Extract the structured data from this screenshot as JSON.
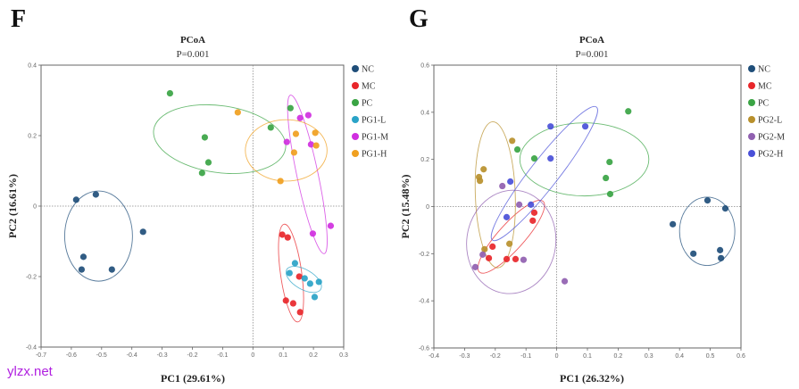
{
  "watermark": "ylzx.net",
  "chart_data": [
    {
      "panel": "F",
      "type": "scatter",
      "title": "PCoA",
      "subtitle": "P=0.001",
      "xlabel": "PC1 (29.61%)",
      "ylabel": "PC2 (16.61%)",
      "xlim": [
        -0.7,
        0.3
      ],
      "ylim": [
        -0.4,
        0.4
      ],
      "xticks": [
        -0.7,
        -0.6,
        -0.5,
        -0.4,
        -0.3,
        -0.2,
        -0.1,
        0,
        0.1,
        0.2,
        0.3
      ],
      "xtick_labels": [
        "-0.7",
        "-0.6",
        "-0.5",
        "-0.4",
        "-0.3",
        "-0.2",
        "-0.1",
        "0",
        "0.1",
        "0.2",
        "0.3"
      ],
      "yticks": [
        -0.4,
        -0.2,
        0,
        0.2,
        0.4
      ],
      "ytick_labels": [
        "-0.4",
        "-0.2",
        "0",
        "0.2",
        "0.4"
      ],
      "grid": false,
      "reference_lines": {
        "x": 0,
        "y": 0
      },
      "legend_position": "right",
      "series": [
        {
          "name": "NC",
          "color": "#1f4e79",
          "points": [
            [
              -0.584,
              0.018
            ],
            [
              -0.519,
              0.033
            ],
            [
              -0.56,
              -0.144
            ],
            [
              -0.566,
              -0.18
            ],
            [
              -0.466,
              -0.18
            ],
            [
              -0.363,
              -0.073
            ]
          ],
          "ellipse": {
            "cx": -0.51,
            "cy": -0.085,
            "rx": 0.112,
            "ry": 0.128,
            "angle": 0
          }
        },
        {
          "name": "MC",
          "color": "#e8262a",
          "points": [
            [
              0.097,
              -0.081
            ],
            [
              0.115,
              -0.089
            ],
            [
              0.153,
              -0.2
            ],
            [
              0.133,
              -0.276
            ],
            [
              0.109,
              -0.268
            ],
            [
              0.156,
              -0.301
            ]
          ],
          "ellipse": {
            "cx": 0.126,
            "cy": -0.19,
            "rx": 0.035,
            "ry": 0.14,
            "angle": -8
          }
        },
        {
          "name": "PC",
          "color": "#3aa444",
          "points": [
            [
              -0.274,
              0.32
            ],
            [
              -0.159,
              0.195
            ],
            [
              -0.147,
              0.124
            ],
            [
              -0.168,
              0.094
            ],
            [
              0.059,
              0.223
            ],
            [
              0.124,
              0.278
            ]
          ],
          "ellipse": {
            "cx": -0.11,
            "cy": 0.19,
            "rx": 0.22,
            "ry": 0.095,
            "angle": 8
          }
        },
        {
          "name": "PG1-L",
          "color": "#2aa3c7",
          "points": [
            [
              0.139,
              -0.162
            ],
            [
              0.121,
              -0.19
            ],
            [
              0.171,
              -0.205
            ],
            [
              0.189,
              -0.22
            ],
            [
              0.218,
              -0.215
            ],
            [
              0.204,
              -0.258
            ]
          ],
          "ellipse": {
            "cx": 0.168,
            "cy": -0.208,
            "rx": 0.065,
            "ry": 0.028,
            "angle": 30
          }
        },
        {
          "name": "PG1-M",
          "color": "#d02fe0",
          "points": [
            [
              0.156,
              0.25
            ],
            [
              0.183,
              0.258
            ],
            [
              0.112,
              0.182
            ],
            [
              0.192,
              0.175
            ],
            [
              0.198,
              -0.078
            ],
            [
              0.257,
              -0.056
            ]
          ],
          "ellipse": {
            "cx": 0.18,
            "cy": 0.09,
            "rx": 0.035,
            "ry": 0.23,
            "angle": -12
          }
        },
        {
          "name": "PG1-H",
          "color": "#f0a020",
          "points": [
            [
              -0.05,
              0.266
            ],
            [
              0.142,
              0.205
            ],
            [
              0.206,
              0.208
            ],
            [
              0.136,
              0.152
            ],
            [
              0.209,
              0.172
            ],
            [
              0.091,
              0.071
            ]
          ],
          "ellipse": {
            "cx": 0.11,
            "cy": 0.158,
            "rx": 0.135,
            "ry": 0.087,
            "angle": 0
          }
        }
      ]
    },
    {
      "panel": "G",
      "type": "scatter",
      "title": "PCoA",
      "subtitle": "P=0.001",
      "xlabel": "PC1 (26.32%)",
      "ylabel": "PC2 (15.48%)",
      "xlim": [
        -0.4,
        0.6
      ],
      "ylim": [
        -0.6,
        0.6
      ],
      "xticks": [
        -0.4,
        -0.3,
        -0.2,
        -0.1,
        0,
        0.1,
        0.2,
        0.3,
        0.4,
        0.5,
        0.6
      ],
      "xtick_labels": [
        "-0.4",
        "-0.3",
        "-0.2",
        "-0.1",
        "0",
        "0.1",
        "0.2",
        "0.3",
        "0.4",
        "0.5",
        "0.6"
      ],
      "yticks": [
        -0.6,
        -0.4,
        -0.2,
        0,
        0.2,
        0.4,
        0.6
      ],
      "ytick_labels": [
        "-0.6",
        "-0.4",
        "-0.2",
        "0",
        "0.2",
        "0.4",
        "0.6"
      ],
      "grid": false,
      "reference_lines": {
        "x": 0,
        "y": 0
      },
      "legend_position": "right",
      "series": [
        {
          "name": "NC",
          "color": "#1f4e79",
          "points": [
            [
              0.378,
              -0.075
            ],
            [
              0.491,
              0.026
            ],
            [
              0.549,
              -0.008
            ],
            [
              0.445,
              -0.2
            ],
            [
              0.532,
              -0.185
            ],
            [
              0.535,
              -0.219
            ]
          ],
          "ellipse": {
            "cx": 0.49,
            "cy": -0.105,
            "rx": 0.09,
            "ry": 0.145,
            "angle": 0
          }
        },
        {
          "name": "MC",
          "color": "#e8262a",
          "points": [
            [
              -0.073,
              -0.026
            ],
            [
              -0.078,
              -0.06
            ],
            [
              -0.209,
              -0.17
            ],
            [
              -0.221,
              -0.219
            ],
            [
              -0.163,
              -0.223
            ],
            [
              -0.134,
              -0.223
            ]
          ],
          "ellipse": {
            "cx": -0.148,
            "cy": -0.128,
            "rx": 0.155,
            "ry": 0.055,
            "angle": -48
          }
        },
        {
          "name": "PC",
          "color": "#3aa444",
          "points": [
            [
              0.233,
              0.404
            ],
            [
              -0.128,
              0.242
            ],
            [
              -0.073,
              0.204
            ],
            [
              0.172,
              0.189
            ],
            [
              0.16,
              0.121
            ],
            [
              0.174,
              0.053
            ]
          ],
          "ellipse": {
            "cx": 0.09,
            "cy": 0.2,
            "rx": 0.21,
            "ry": 0.155,
            "angle": 0
          }
        },
        {
          "name": "PG2-L",
          "color": "#b8902c",
          "points": [
            [
              -0.145,
              0.279
            ],
            [
              -0.238,
              0.158
            ],
            [
              -0.253,
              0.125
            ],
            [
              -0.25,
              0.109
            ],
            [
              -0.154,
              -0.158
            ],
            [
              -0.235,
              -0.181
            ]
          ],
          "ellipse": {
            "cx": -0.2,
            "cy": 0.05,
            "rx": 0.065,
            "ry": 0.31,
            "angle": -2
          }
        },
        {
          "name": "PG2-M",
          "color": "#9060b0",
          "points": [
            [
              -0.177,
              0.087
            ],
            [
              -0.122,
              0.008
            ],
            [
              -0.108,
              -0.226
            ],
            [
              -0.241,
              -0.204
            ],
            [
              -0.265,
              -0.257
            ],
            [
              0.026,
              -0.317
            ]
          ],
          "ellipse": {
            "cx": -0.148,
            "cy": -0.15,
            "rx": 0.145,
            "ry": 0.22,
            "angle": 8
          }
        },
        {
          "name": "PG2-H",
          "color": "#4a50d8",
          "points": [
            [
              -0.02,
              0.34
            ],
            [
              0.093,
              0.34
            ],
            [
              -0.02,
              0.204
            ],
            [
              -0.151,
              0.106
            ],
            [
              -0.084,
              0.008
            ],
            [
              -0.163,
              -0.045
            ]
          ],
          "ellipse": {
            "cx": -0.04,
            "cy": 0.14,
            "rx": 0.275,
            "ry": 0.06,
            "angle": -52
          }
        }
      ]
    }
  ]
}
